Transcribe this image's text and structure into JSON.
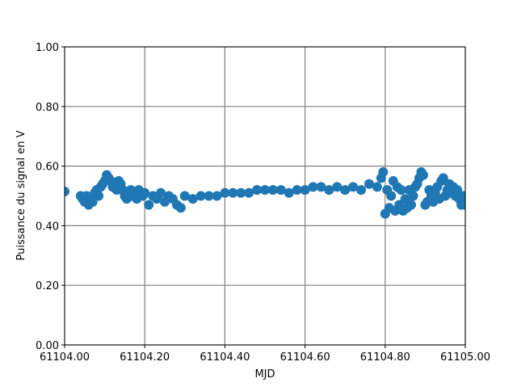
{
  "chart_data": {
    "type": "scatter",
    "xlabel": "MJD",
    "ylabel": "Puissance du signal en V",
    "color": "#1f77b4",
    "grid": true,
    "xlim": [
      61104.0,
      61105.0
    ],
    "xticks": [
      {
        "value": 61104.0,
        "label": "61104.00"
      },
      {
        "value": 61104.2,
        "label": "61104.20"
      },
      {
        "value": 61104.4,
        "label": "61104.40"
      },
      {
        "value": 61104.6,
        "label": "61104.60"
      },
      {
        "value": 61104.8,
        "label": "61104.80"
      },
      {
        "value": 61105.0,
        "label": "61105.00"
      }
    ],
    "ylim": [
      0,
      1
    ],
    "yticks": [
      {
        "value": 0,
        "label": "0.00"
      },
      {
        "value": 0.2,
        "label": "0.20"
      },
      {
        "value": 0.4,
        "label": "0.40"
      },
      {
        "value": 0.6,
        "label": "0.60"
      },
      {
        "value": 0.8,
        "label": "0.80"
      },
      {
        "value": 1,
        "label": "1.00"
      }
    ],
    "x": [
      61104.0,
      61104.04,
      61104.045,
      61104.05,
      61104.055,
      61104.06,
      61104.065,
      61104.07,
      61104.075,
      61104.08,
      61104.085,
      61104.09,
      61104.095,
      61104.1,
      61104.105,
      61104.11,
      61104.115,
      61104.12,
      61104.125,
      61104.13,
      61104.135,
      61104.14,
      61104.145,
      61104.15,
      61104.155,
      61104.16,
      61104.165,
      61104.17,
      61104.175,
      61104.18,
      61104.185,
      61104.19,
      61104.195,
      61104.2,
      61104.21,
      61104.22,
      61104.23,
      61104.24,
      61104.25,
      61104.26,
      61104.27,
      61104.28,
      61104.29,
      61104.3,
      61104.32,
      61104.34,
      61104.36,
      61104.38,
      61104.4,
      61104.42,
      61104.44,
      61104.46,
      61104.48,
      61104.5,
      61104.52,
      61104.54,
      61104.56,
      61104.58,
      61104.6,
      61104.62,
      61104.64,
      61104.66,
      61104.68,
      61104.7,
      61104.72,
      61104.74,
      61104.76,
      61104.78,
      61104.79,
      61104.795,
      61104.8,
      61104.805,
      61104.81,
      61104.815,
      61104.82,
      61104.825,
      61104.83,
      61104.835,
      61104.84,
      61104.845,
      61104.85,
      61104.855,
      61104.86,
      61104.865,
      61104.87,
      61104.875,
      61104.88,
      61104.885,
      61104.89,
      61104.895,
      61104.9,
      61104.905,
      61104.91,
      61104.915,
      61104.92,
      61104.925,
      61104.93,
      61104.935,
      61104.94,
      61104.945,
      61104.95,
      61104.955,
      61104.96,
      61104.965,
      61104.97,
      61104.975,
      61104.98,
      61104.985,
      61104.99,
      61104.995,
      61105.0
    ],
    "values": [
      0.515,
      0.5,
      0.49,
      0.48,
      0.5,
      0.47,
      0.49,
      0.48,
      0.51,
      0.52,
      0.5,
      0.53,
      0.54,
      0.55,
      0.57,
      0.56,
      0.55,
      0.53,
      0.54,
      0.52,
      0.55,
      0.54,
      0.52,
      0.5,
      0.49,
      0.51,
      0.52,
      0.5,
      0.51,
      0.49,
      0.52,
      0.51,
      0.5,
      0.51,
      0.47,
      0.5,
      0.49,
      0.51,
      0.48,
      0.5,
      0.49,
      0.47,
      0.46,
      0.5,
      0.49,
      0.5,
      0.5,
      0.5,
      0.51,
      0.51,
      0.51,
      0.51,
      0.52,
      0.52,
      0.52,
      0.52,
      0.51,
      0.52,
      0.52,
      0.53,
      0.53,
      0.52,
      0.53,
      0.52,
      0.53,
      0.52,
      0.54,
      0.53,
      0.56,
      0.58,
      0.44,
      0.52,
      0.46,
      0.5,
      0.55,
      0.45,
      0.53,
      0.47,
      0.52,
      0.45,
      0.49,
      0.46,
      0.52,
      0.47,
      0.5,
      0.53,
      0.54,
      0.56,
      0.58,
      0.57,
      0.47,
      0.48,
      0.52,
      0.5,
      0.48,
      0.51,
      0.53,
      0.49,
      0.55,
      0.56,
      0.5,
      0.52,
      0.54,
      0.51,
      0.53,
      0.5,
      0.52,
      0.49,
      0.47,
      0.5,
      0.47
    ]
  }
}
